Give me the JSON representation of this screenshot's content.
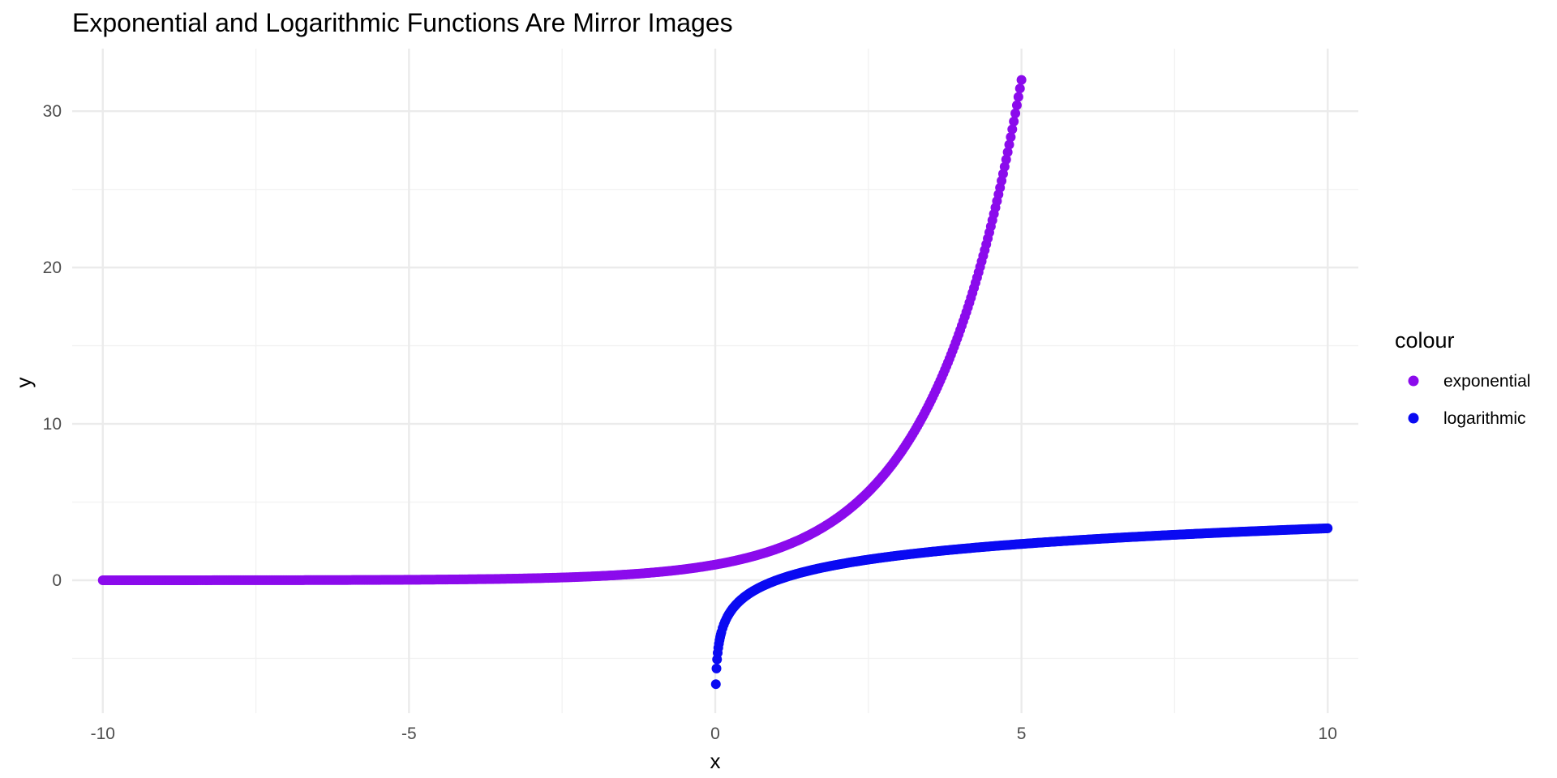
{
  "chart_data": {
    "type": "scatter",
    "title": "Exponential and Logarithmic Functions Are Mirror Images",
    "xlabel": "x",
    "ylabel": "y",
    "xlim": [
      -10.5,
      10.5
    ],
    "ylim": [
      -8.5,
      34
    ],
    "x_ticks": [
      -10,
      -5,
      0,
      5,
      10
    ],
    "x_tick_labels": [
      "-10",
      "-5",
      "0",
      "5",
      "10"
    ],
    "x_minor_ticks": [
      -7.5,
      -2.5,
      2.5,
      7.5
    ],
    "y_ticks": [
      0,
      10,
      20,
      30
    ],
    "y_tick_labels": [
      "0",
      "10",
      "20",
      "30"
    ],
    "y_minor_ticks": [
      -5,
      5,
      15,
      25
    ],
    "grid": true,
    "legend": {
      "title": "colour",
      "position": "right"
    },
    "series": [
      {
        "name": "exponential",
        "color": "#8b0bec",
        "function": "2^x",
        "x": [
          -10,
          -9,
          -8,
          -7,
          -6,
          -5,
          -4,
          -3,
          -2,
          -1,
          0,
          0.5,
          1,
          1.5,
          2,
          2.5,
          3,
          3.5,
          4,
          4.25,
          4.5,
          4.75,
          5
        ],
        "y": [
          0.001,
          0.002,
          0.004,
          0.008,
          0.016,
          0.031,
          0.063,
          0.125,
          0.25,
          0.5,
          1,
          1.41,
          2,
          2.83,
          4,
          5.66,
          8,
          11.31,
          16,
          19.03,
          22.63,
          26.91,
          32
        ]
      },
      {
        "name": "logarithmic",
        "color": "#0a0af2",
        "function": "log2(x)",
        "x": [
          0.01,
          0.02,
          0.03,
          0.05,
          0.1,
          0.2,
          0.3,
          0.5,
          0.75,
          1,
          1.5,
          2,
          3,
          4,
          5,
          6,
          7,
          8,
          9,
          10
        ],
        "y": [
          -6.64,
          -5.64,
          -5.06,
          -4.32,
          -3.32,
          -2.32,
          -1.74,
          -1,
          -0.42,
          0,
          0.58,
          1,
          1.58,
          2,
          2.32,
          2.58,
          2.81,
          3,
          3.17,
          3.32
        ]
      }
    ]
  }
}
